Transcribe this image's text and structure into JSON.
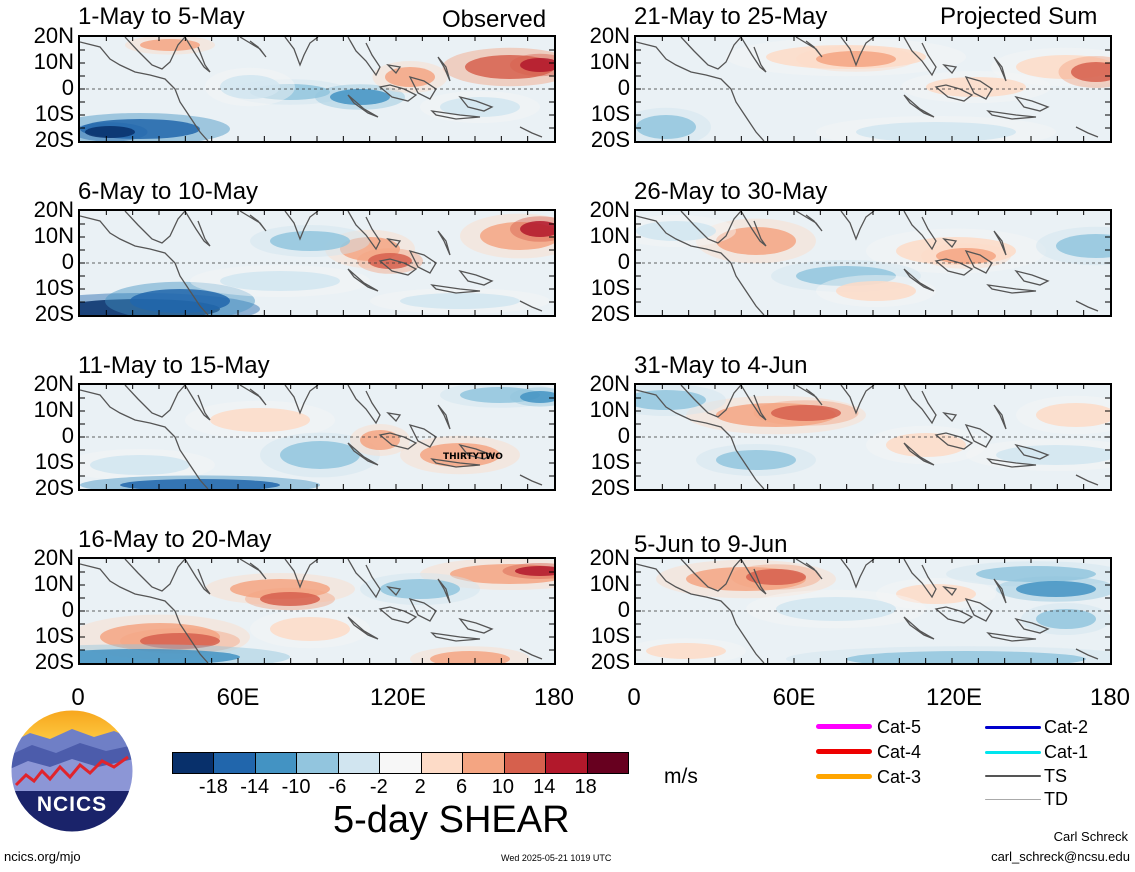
{
  "header": {
    "left_label": "Observed",
    "right_label": "Projected Sum"
  },
  "panels": [
    {
      "title": "1-May to 5-May",
      "column": "left"
    },
    {
      "title": "6-May to 10-May",
      "column": "left"
    },
    {
      "title": "11-May to 15-May",
      "column": "left"
    },
    {
      "title": "16-May to 20-May",
      "column": "left"
    },
    {
      "title": "21-May to 25-May",
      "column": "right"
    },
    {
      "title": "26-May to 30-May",
      "column": "right"
    },
    {
      "title": "31-May to 4-Jun",
      "column": "right"
    },
    {
      "title": "5-Jun to 9-Jun",
      "column": "right"
    }
  ],
  "latitude_labels": [
    "20N",
    "10N",
    "0",
    "10S",
    "20S"
  ],
  "longitude_labels": [
    "0",
    "60E",
    "120E",
    "180"
  ],
  "storm_label": "THIRTYTWO",
  "colorbar": {
    "title": "5-day SHEAR",
    "units": "m/s",
    "ticks": [
      "-18",
      "-14",
      "-10",
      "-6",
      "-2",
      "2",
      "6",
      "10",
      "14",
      "18"
    ],
    "colors": [
      "#08306b",
      "#2166ac",
      "#4393c3",
      "#92c5de",
      "#d1e5f0",
      "#f7f7f7",
      "#fddbc7",
      "#f4a582",
      "#d6604d",
      "#b2182b",
      "#67001f"
    ]
  },
  "track_legend": [
    {
      "label": "Cat-5",
      "color": "#ff00ff"
    },
    {
      "label": "Cat-4",
      "color": "#ee0000"
    },
    {
      "label": "Cat-3",
      "color": "#ffa500"
    },
    {
      "label": "Cat-2",
      "color": "#0000cc"
    },
    {
      "label": "Cat-1",
      "color": "#00e5ee"
    },
    {
      "label": "TS",
      "color": "#555555"
    },
    {
      "label": "TD",
      "color": "#aaaaaa"
    }
  ],
  "logo": {
    "text": "NCICS"
  },
  "footer": {
    "url": "ncics.org/mjo",
    "timestamp": "Wed 2025-05-21 1019 UTC",
    "author": "Carl Schreck",
    "email": "carl_schreck@ncsu.edu"
  }
}
